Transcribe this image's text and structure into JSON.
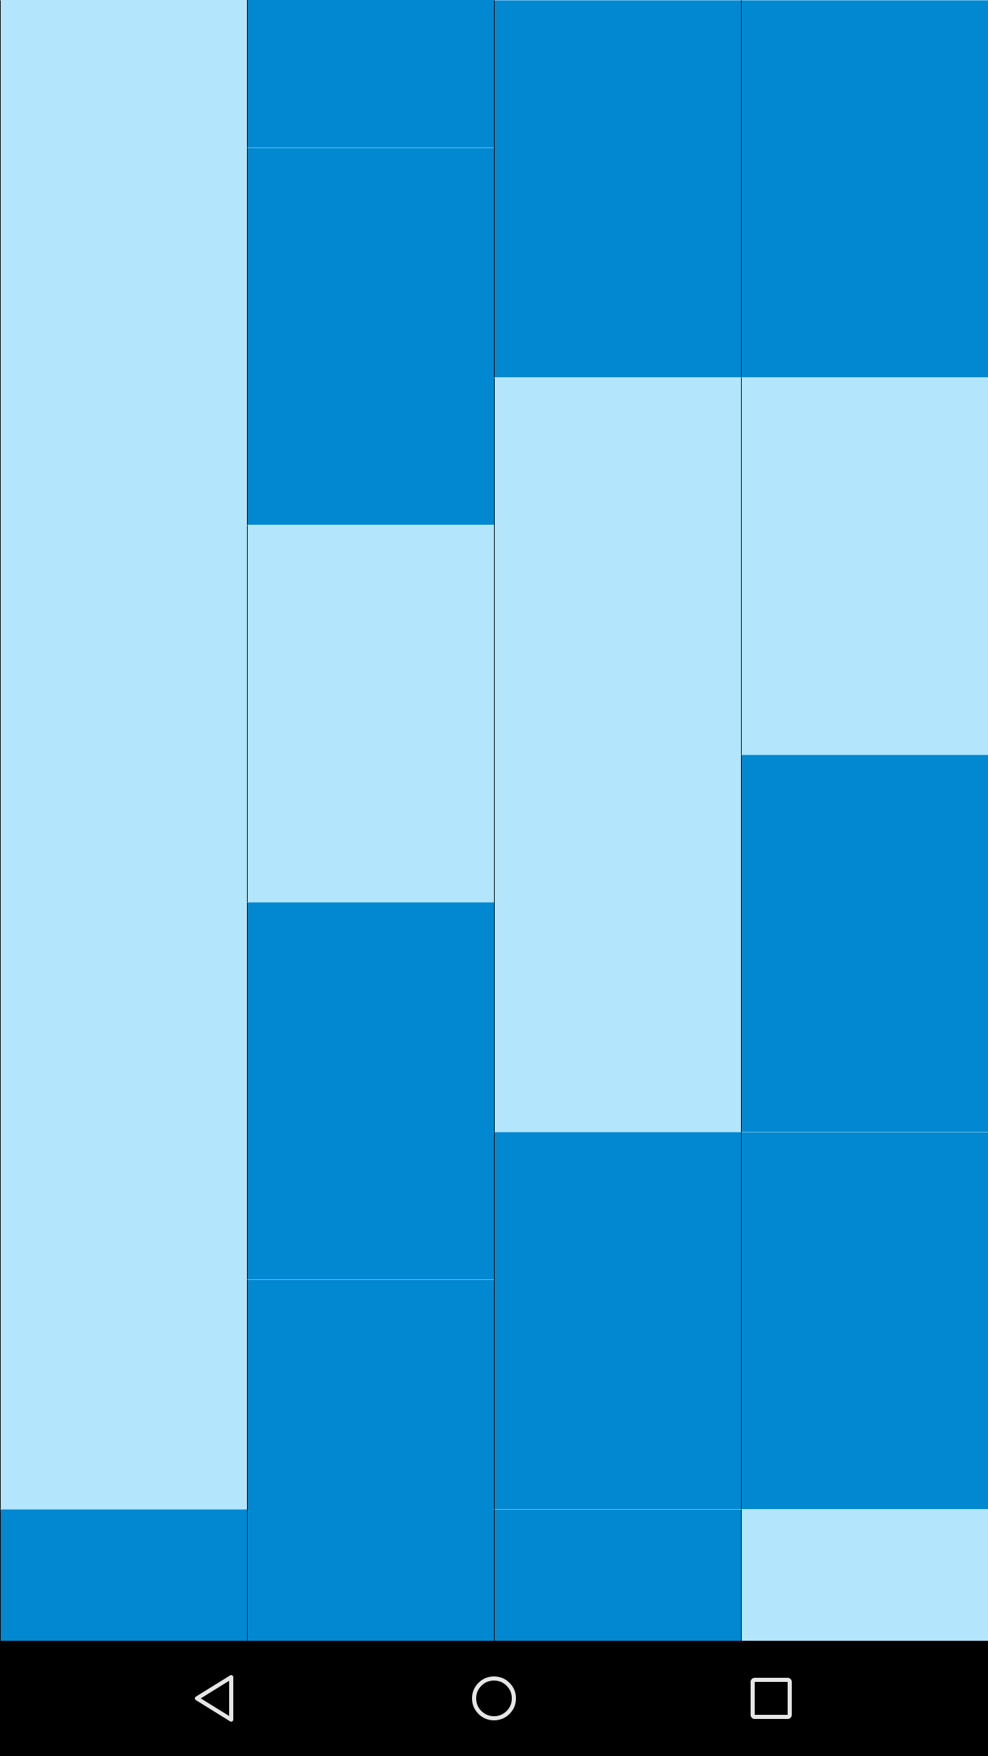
{
  "colors": {
    "dark_tile": "#0288D1",
    "light_tile": "#B3E5FC",
    "divider": "#000000",
    "nav_bar": "#000000",
    "nav_icon": "#E6E6E6"
  },
  "board": {
    "columns": 4,
    "column_tiles": [
      [
        {
          "color": "light",
          "rows": 8
        },
        {
          "color": "dark",
          "rows": 1
        }
      ],
      [
        {
          "color": "dark",
          "rows": 1
        },
        {
          "color": "dark",
          "rows": 2
        },
        {
          "color": "light",
          "rows": 2
        },
        {
          "color": "dark",
          "rows": 2
        },
        {
          "color": "dark",
          "rows": 2
        }
      ],
      [
        {
          "color": "dark",
          "rows": 2
        },
        {
          "color": "light",
          "rows": 4
        },
        {
          "color": "dark",
          "rows": 2
        },
        {
          "color": "dark",
          "rows": 1
        }
      ],
      [
        {
          "color": "dark",
          "rows": 2
        },
        {
          "color": "light",
          "rows": 2
        },
        {
          "color": "dark",
          "rows": 2
        },
        {
          "color": "dark",
          "rows": 2
        },
        {
          "color": "light",
          "rows": 1
        }
      ]
    ]
  },
  "navigation_bar": {
    "buttons": [
      "back-icon",
      "home-icon",
      "recents-icon"
    ]
  }
}
